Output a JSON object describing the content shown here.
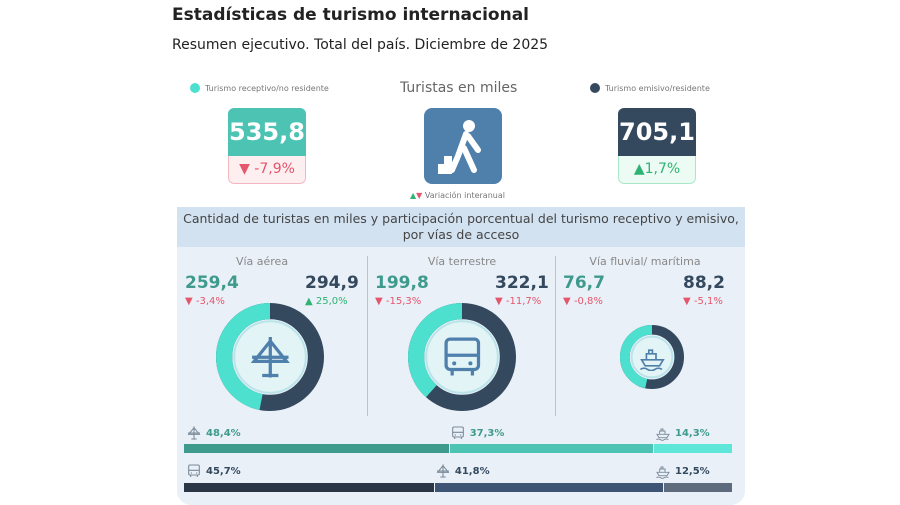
{
  "header": {
    "title": "Estadísticas de turismo internacional",
    "subtitle": "Resumen ejecutivo. Total del país. Diciembre de 2025"
  },
  "legend": {
    "receptive": "Turismo receptivo/no residente",
    "emissive": "Turismo emisivo/residente",
    "center_title": "Turistas en miles",
    "variation": "Variación interanual"
  },
  "colors": {
    "receptive": "#4dc3b3",
    "emissive": "#34495e",
    "icon_bg": "#4f7fab",
    "negative": "#e5566c",
    "positive": "#2fb374"
  },
  "kpi": {
    "receptive": {
      "value": "535,8",
      "change": "-7,9%",
      "direction": "down"
    },
    "emissive": {
      "value": "705,1",
      "change": "1,7%",
      "direction": "up"
    }
  },
  "panel": {
    "title": "Cantidad de turistas en miles y participación porcentual del turismo receptivo y emisivo, por vías de acceso",
    "columns": [
      {
        "name": "Vía aérea",
        "icon": "airplane-icon",
        "receptive": {
          "value": "259,4",
          "change": "-3,4%",
          "direction": "down"
        },
        "emissive": {
          "value": "294,9",
          "change": "25,0%",
          "direction": "up"
        },
        "receptive_share": 46.8
      },
      {
        "name": "Vía terrestre",
        "icon": "bus-icon",
        "receptive": {
          "value": "199,8",
          "change": "-15,3%",
          "direction": "down"
        },
        "emissive": {
          "value": "322,1",
          "change": "-11,7%",
          "direction": "down"
        },
        "receptive_share": 38.3
      },
      {
        "name": "Vía fluvial/ marítima",
        "icon": "ship-icon",
        "receptive": {
          "value": "76,7",
          "change": "-0,8%",
          "direction": "down"
        },
        "emissive": {
          "value": "88,2",
          "change": "-5,1%",
          "direction": "down"
        },
        "receptive_share": 46.5
      }
    ]
  },
  "shares": {
    "receptive": [
      {
        "icon": "airplane-icon",
        "label": "48,4%",
        "value": 48.4,
        "color": "#3e9a8c"
      },
      {
        "icon": "bus-icon",
        "label": "37,3%",
        "value": 37.3,
        "color": "#4dc3b3"
      },
      {
        "icon": "ship-icon",
        "label": "14,3%",
        "value": 14.3,
        "color": "#5ee6d8"
      }
    ],
    "emissive": [
      {
        "icon": "bus-icon",
        "label": "45,7%",
        "value": 45.7,
        "color": "#2a3645"
      },
      {
        "icon": "airplane-icon",
        "label": "41,8%",
        "value": 41.8,
        "color": "#3d5474"
      },
      {
        "icon": "ship-icon",
        "label": "12,5%",
        "value": 12.5,
        "color": "#5d6b7d"
      }
    ]
  }
}
